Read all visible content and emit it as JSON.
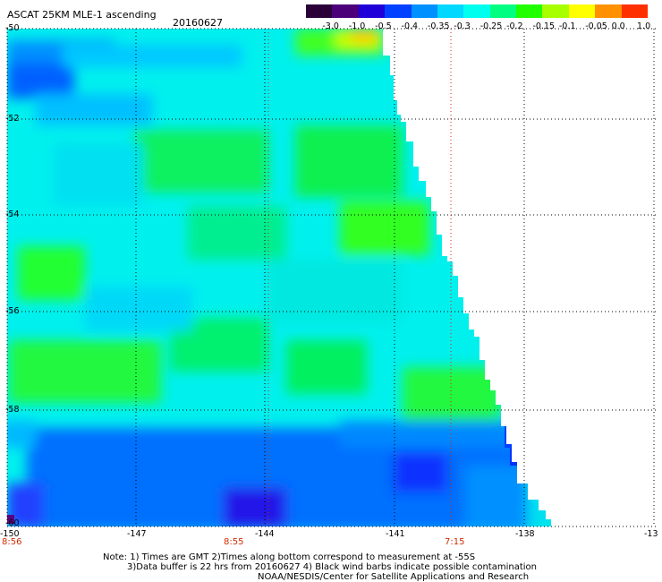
{
  "header": {
    "title": "ASCAT 25KM MLE-1 ascending",
    "date": "20160627"
  },
  "legend": {
    "labels": [
      "-3.0",
      "-1.0",
      "-0.5",
      "-0.4",
      "-0.35",
      "-0.3",
      "-0.25",
      "-0.2",
      "-0.15",
      "-0.1",
      "-0.05",
      "0.0",
      "1.0"
    ],
    "colors": [
      "#2b0038",
      "#4b007a",
      "#2000d8",
      "#0040ff",
      "#0090ff",
      "#00d8ff",
      "#00ffee",
      "#00ff80",
      "#20ff00",
      "#a8ff00",
      "#ffff00",
      "#ff9000",
      "#ff3000"
    ]
  },
  "axes": {
    "y_labels": [
      "-50",
      "-52",
      "-54",
      "-56",
      "-58",
      "-60"
    ],
    "x_labels": [
      "-150",
      "-147",
      "-144",
      "-141",
      "-138",
      "-13"
    ]
  },
  "times": {
    "t1": "8:56",
    "t2": "8:55",
    "t3": "7:15"
  },
  "notes": {
    "line1": "Note: 1) Times are GMT 2)Times along bottom correspond to measurement at -55S",
    "line2": "3)Data buffer is 22 hrs from 20160627 4) Black wind barbs indicate possible contamination",
    "line3": "NOAA/NESDIS/Center for Satellite Applications and Research"
  }
}
